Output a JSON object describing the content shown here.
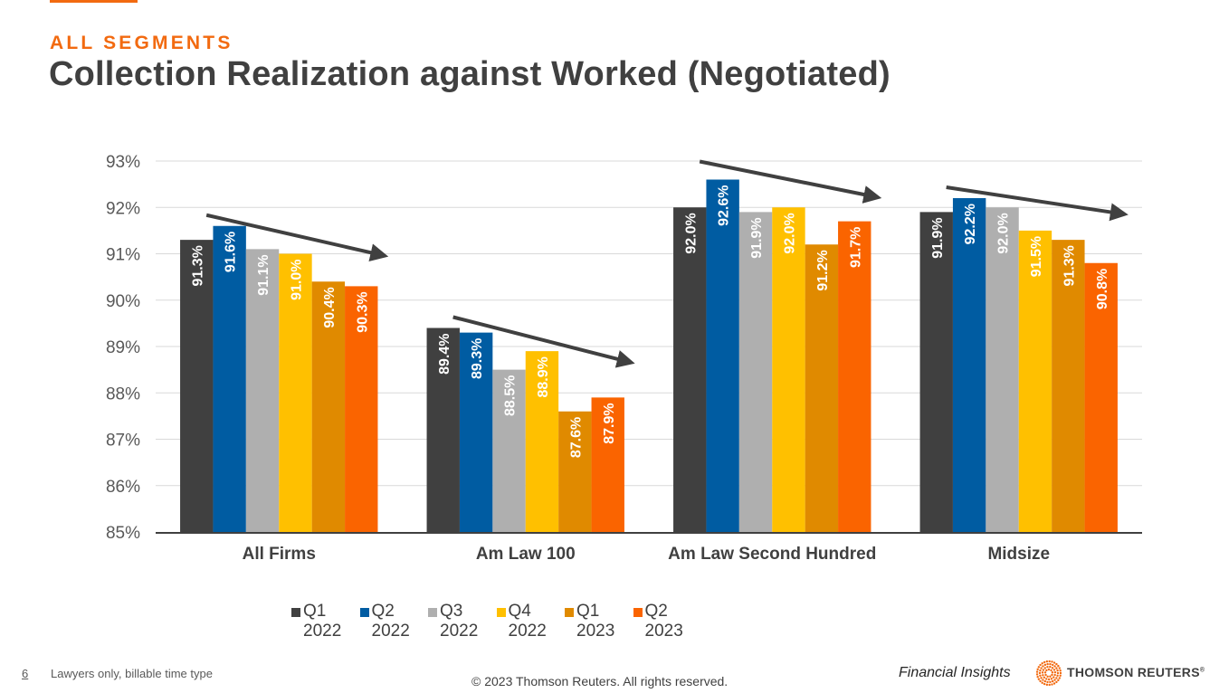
{
  "header": {
    "eyebrow": "ALL SEGMENTS",
    "title": "Collection Realization against Worked (Negotiated)"
  },
  "chart_data": {
    "type": "bar",
    "title": "Collection Realization against Worked (Negotiated)",
    "xlabel": "",
    "ylabel": "",
    "ylim": [
      85,
      93
    ],
    "yticks": [
      "85%",
      "86%",
      "87%",
      "88%",
      "89%",
      "90%",
      "91%",
      "92%",
      "93%"
    ],
    "grid": true,
    "legend_position": "bottom",
    "categories": [
      "All Firms",
      "Am Law 100",
      "Am Law Second Hundred",
      "Midsize"
    ],
    "series": [
      {
        "name": "Q1 2022",
        "label_lines": [
          "Q1",
          "2022"
        ],
        "color": "#404040",
        "values": [
          91.3,
          89.4,
          92.0,
          91.9
        ],
        "labels": [
          "91.3%",
          "89.4%",
          "92.0%",
          "91.9%"
        ]
      },
      {
        "name": "Q2 2022",
        "label_lines": [
          "Q2",
          "2022"
        ],
        "color": "#005ca2",
        "values": [
          91.6,
          89.3,
          92.6,
          92.2
        ],
        "labels": [
          "91.6%",
          "89.3%",
          "92.6%",
          "92.2%"
        ]
      },
      {
        "name": "Q3 2022",
        "label_lines": [
          "Q3",
          "2022"
        ],
        "color": "#afafaf",
        "values": [
          91.1,
          88.5,
          91.9,
          92.0
        ],
        "labels": [
          "91.1%",
          "88.5%",
          "91.9%",
          "92.0%"
        ]
      },
      {
        "name": "Q4 2022",
        "label_lines": [
          "Q4",
          "2022"
        ],
        "color": "#ffc000",
        "values": [
          91.0,
          88.9,
          92.0,
          91.5
        ],
        "labels": [
          "91.0%",
          "88.9%",
          "92.0%",
          "91.5%"
        ]
      },
      {
        "name": "Q1 2023",
        "label_lines": [
          "Q1",
          "2023"
        ],
        "color": "#e08a00",
        "values": [
          90.4,
          87.6,
          91.2,
          91.3
        ],
        "labels": [
          "90.4%",
          "87.6%",
          "91.2%",
          "91.3%"
        ]
      },
      {
        "name": "Q2 2023",
        "label_lines": [
          "Q2",
          "2023"
        ],
        "color": "#fa6400",
        "values": [
          90.3,
          87.9,
          91.7,
          90.8
        ],
        "labels": [
          "90.3%",
          "87.9%",
          "91.7%",
          "90.8%"
        ]
      }
    ],
    "annotations": [
      {
        "type": "trend-arrow",
        "category": "All Firms",
        "direction": "down"
      },
      {
        "type": "trend-arrow",
        "category": "Am Law 100",
        "direction": "down"
      },
      {
        "type": "trend-arrow",
        "category": "Am Law Second Hundred",
        "direction": "down"
      },
      {
        "type": "trend-arrow",
        "category": "Midsize",
        "direction": "down"
      }
    ]
  },
  "footer": {
    "page_number": "6",
    "note": "Lawyers only, billable time type",
    "copyright": "© 2023 Thomson Reuters. All rights reserved.",
    "product": "Financial Insights",
    "brand": "THOMSON REUTERS",
    "brand_mark": "®"
  },
  "colors": {
    "accent": "#f26a10",
    "title": "#404040"
  }
}
